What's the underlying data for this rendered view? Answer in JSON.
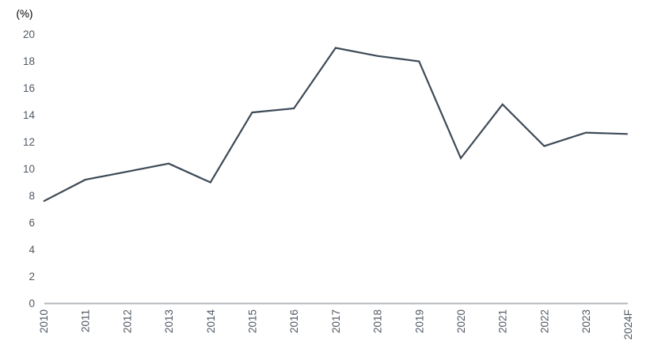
{
  "page": {
    "background": "#ffffff"
  },
  "chart_data": {
    "type": "line",
    "title": "",
    "ylabel": "(%)",
    "xlabel": "",
    "categories": [
      "2010",
      "2011",
      "2012",
      "2013",
      "2014",
      "2015",
      "2016",
      "2017",
      "2018",
      "2019",
      "2020",
      "2021",
      "2022",
      "2023",
      "2024F"
    ],
    "series": [
      {
        "name": "percentage-line",
        "values": [
          7.6,
          9.2,
          9.8,
          10.4,
          9.0,
          14.2,
          14.5,
          19.0,
          18.4,
          18.0,
          10.8,
          14.8,
          11.7,
          12.7,
          12.6
        ],
        "color": "#3d4a57"
      }
    ],
    "ylim": [
      0,
      20
    ],
    "ytick_step": 2,
    "yticks": [
      0,
      2,
      4,
      6,
      8,
      10,
      12,
      14,
      16,
      18,
      20
    ],
    "grid": false,
    "legend": "none",
    "colors": {
      "axis_line": "#b1b6ba",
      "tick_label": "#4f5963",
      "background": "#ffffff"
    }
  }
}
